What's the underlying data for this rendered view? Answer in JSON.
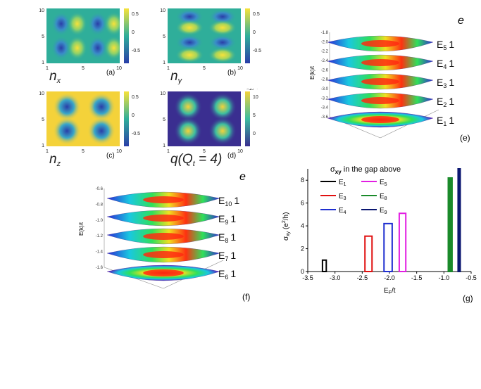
{
  "colors": {
    "low": "#3a3d98",
    "mid": "#35b79a",
    "high": "#f9e13a",
    "blue": "#1f2fd0",
    "red": "#e01010",
    "green": "#1a8a2a",
    "magenta": "#e21ee2",
    "navy": "#0a1670",
    "black": "#000000"
  },
  "maps": [
    {
      "id": "a",
      "math": "n",
      "sub": "x",
      "panel": "(a)",
      "cb_ticks": [
        "0.5",
        "0",
        "-0.5"
      ],
      "cb_exp": ""
    },
    {
      "id": "b",
      "math": "n",
      "sub": "y",
      "panel": "(b)",
      "cb_ticks": [
        "0.5",
        "0",
        "-0.5"
      ],
      "cb_exp": ""
    },
    {
      "id": "c",
      "math": "n",
      "sub": "z",
      "panel": "(c)",
      "cb_ticks": [
        "0.5",
        "0",
        "-0.5"
      ],
      "cb_exp": ""
    },
    {
      "id": "d",
      "math": "q(Q",
      "sub": "t",
      "math_tail": " = 4)",
      "panel": "(d)",
      "cb_ticks": [
        "10",
        "5",
        "0"
      ],
      "cb_exp": "×10⁻⁴"
    }
  ],
  "map_axes": {
    "y_ticks": [
      "10",
      "5",
      "1"
    ],
    "x_ticks": [
      "1",
      "5",
      "10"
    ]
  },
  "band_e": {
    "panel": "(e)",
    "corner": "e",
    "zlabel": "E(k)/t",
    "z_ticks": [
      "-1.8",
      "-2.0",
      "-2.2",
      "-2.4",
      "-2.6",
      "-2.8",
      "-3.0",
      "-3.2",
      "-3.4",
      "-3.6"
    ],
    "bands": [
      {
        "name": "E",
        "sub": "5",
        "chern": "1"
      },
      {
        "name": "E",
        "sub": "4",
        "chern": "1"
      },
      {
        "name": "E",
        "sub": "3",
        "chern": "1"
      },
      {
        "name": "E",
        "sub": "2",
        "chern": "1"
      },
      {
        "name": "E",
        "sub": "1",
        "chern": "1"
      }
    ]
  },
  "band_f": {
    "panel": "(f)",
    "corner": "e",
    "zlabel": "E(k)/t",
    "z_ticks": [
      "-0.6",
      "-0.8",
      "-1.0",
      "-1.2",
      "-1.4",
      "-1.6"
    ],
    "bands": [
      {
        "name": "E",
        "sub": "10",
        "chern": "1"
      },
      {
        "name": "E",
        "sub": "9",
        "chern": "1"
      },
      {
        "name": "E",
        "sub": "8",
        "chern": "1"
      },
      {
        "name": "E",
        "sub": "7",
        "chern": "1"
      },
      {
        "name": "E",
        "sub": "6",
        "chern": "1"
      }
    ]
  },
  "chart_data": {
    "type": "bar",
    "panel": "(g)",
    "title": "σxy in the gap above",
    "xlabel": "E_F/t",
    "ylabel": "σxy (e²/h)",
    "xlim": [
      -3.5,
      -0.5
    ],
    "ylim": [
      0,
      9
    ],
    "x_ticks": [
      "-3.5",
      "-3.0",
      "-2.5",
      "-2.0",
      "-1.5",
      "-1.0",
      "-0.5"
    ],
    "y_ticks": [
      "0",
      "2",
      "4",
      "6",
      "8"
    ],
    "legend": [
      {
        "label": "E",
        "sub": "1",
        "color": "#000000"
      },
      {
        "label": "E",
        "sub": "5",
        "color": "#e21ee2"
      },
      {
        "label": "E",
        "sub": "3",
        "color": "#e01010"
      },
      {
        "label": "E",
        "sub": "8",
        "color": "#1a8a2a"
      },
      {
        "label": "E",
        "sub": "4",
        "color": "#1f2fd0"
      },
      {
        "label": "E",
        "sub": "9",
        "color": "#0a1670"
      }
    ],
    "series": [
      {
        "name": "E1",
        "x0": -3.23,
        "x1": -3.16,
        "value": 1,
        "color": "#000000",
        "style": "outline"
      },
      {
        "name": "E3",
        "x0": -2.45,
        "x1": -2.32,
        "value": 3.1,
        "color": "#e01010",
        "style": "outline"
      },
      {
        "name": "E4",
        "x0": -2.1,
        "x1": -1.95,
        "value": 4.2,
        "color": "#1f2fd0",
        "style": "outline"
      },
      {
        "name": "E5",
        "x0": -1.82,
        "x1": -1.7,
        "value": 5.1,
        "color": "#e21ee2",
        "style": "outline"
      },
      {
        "name": "E8",
        "x0": -0.92,
        "x1": -0.85,
        "value": 8.2,
        "color": "#1a8a2a",
        "style": "filled"
      },
      {
        "name": "E9",
        "x0": -0.74,
        "x1": -0.7,
        "value": 9.0,
        "color": "#0a1670",
        "style": "filled"
      }
    ]
  }
}
